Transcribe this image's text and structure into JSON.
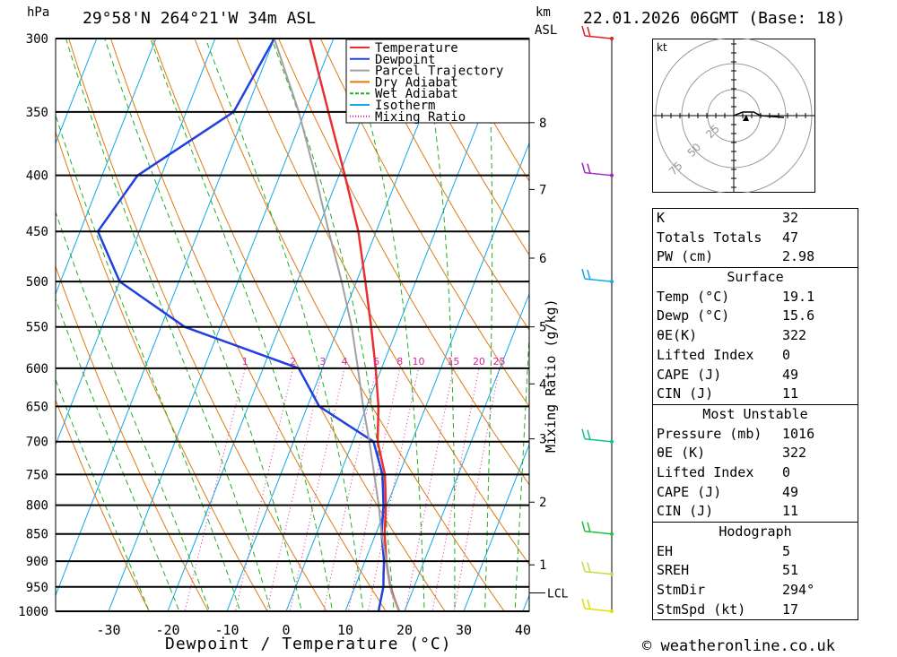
{
  "header": {
    "station": "29°58'N 264°21'W 34m ASL",
    "run": "22.01.2026 06GMT (Base: 18)",
    "pressure_unit": "hPa",
    "height_unit_km": "km",
    "height_unit_asl": "ASL"
  },
  "footer": {
    "xlabel": "Dewpoint / Temperature (°C)",
    "mixing_label": "Mixing Ratio (g/kg)",
    "credit": "© weatheronline.co.uk"
  },
  "legend": [
    {
      "label": "Temperature",
      "color": "#e83030"
    },
    {
      "label": "Dewpoint",
      "color": "#2040e0"
    },
    {
      "label": "Parcel Trajectory",
      "color": "#a0a0a0"
    },
    {
      "label": "Dry Adiabat",
      "color": "#e07a10"
    },
    {
      "label": "Wet Adiabat",
      "color": "#20b020"
    },
    {
      "label": "Isotherm",
      "color": "#10a8e8"
    },
    {
      "label": "Mixing Ratio",
      "color": "#e020a0"
    }
  ],
  "chart_data": {
    "type": "line",
    "title": "29°58'N 264°21'W 34m ASL",
    "xlabel": "Dewpoint / Temperature (°C)",
    "ylabel": "hPa",
    "y_scale": "log-pressure",
    "ylim": [
      1000,
      300
    ],
    "xlim": [
      -40,
      40
    ],
    "pressure_ticks": [
      1000,
      950,
      900,
      850,
      800,
      750,
      700,
      650,
      600,
      550,
      500,
      450,
      400,
      350,
      300
    ],
    "temp_ticks": [
      -30,
      -20,
      -10,
      0,
      10,
      20,
      30,
      40
    ],
    "km_ticks": [
      {
        "label": "1",
        "p": 907
      },
      {
        "label": "2",
        "p": 795
      },
      {
        "label": "3",
        "p": 696
      },
      {
        "label": "4",
        "p": 620
      },
      {
        "label": "5",
        "p": 550
      },
      {
        "label": "6",
        "p": 476
      },
      {
        "label": "7",
        "p": 412
      },
      {
        "label": "8",
        "p": 358
      }
    ],
    "lcl": {
      "label": "LCL",
      "p": 962
    },
    "mixing_ratio_labels": [
      "1",
      "2",
      "3",
      "4",
      "6",
      "8",
      "10",
      "15",
      "20",
      "25"
    ],
    "series": [
      {
        "name": "Temperature",
        "color": "#e83030",
        "points": [
          [
            1000,
            19.1
          ],
          [
            975,
            17.5
          ],
          [
            950,
            16.0
          ],
          [
            925,
            14.8
          ],
          [
            900,
            13.6
          ],
          [
            850,
            11.5
          ],
          [
            800,
            9.8
          ],
          [
            750,
            7.6
          ],
          [
            700,
            4.2
          ],
          [
            650,
            2.0
          ],
          [
            600,
            -1.0
          ],
          [
            550,
            -4.5
          ],
          [
            500,
            -8.5
          ],
          [
            450,
            -13
          ],
          [
            400,
            -19
          ],
          [
            350,
            -26
          ],
          [
            300,
            -34
          ]
        ]
      },
      {
        "name": "Dewpoint",
        "color": "#2040e0",
        "points": [
          [
            1000,
            15.6
          ],
          [
            975,
            15.2
          ],
          [
            950,
            14.8
          ],
          [
            925,
            14.0
          ],
          [
            900,
            13.2
          ],
          [
            850,
            11.0
          ],
          [
            800,
            9.4
          ],
          [
            750,
            7.2
          ],
          [
            700,
            3.5
          ],
          [
            650,
            -8
          ],
          [
            600,
            -14
          ],
          [
            550,
            -36
          ],
          [
            500,
            -50
          ],
          [
            450,
            -57
          ],
          [
            400,
            -54
          ],
          [
            350,
            -42
          ],
          [
            300,
            -40
          ]
        ]
      },
      {
        "name": "Parcel Trajectory",
        "color": "#a0a0a0",
        "points": [
          [
            1000,
            19.1
          ],
          [
            962,
            16.6
          ],
          [
            900,
            13.6
          ],
          [
            850,
            11.0
          ],
          [
            800,
            8.6
          ],
          [
            750,
            5.8
          ],
          [
            700,
            2.8
          ],
          [
            650,
            -0.6
          ],
          [
            600,
            -4
          ],
          [
            550,
            -7.8
          ],
          [
            500,
            -12.5
          ],
          [
            450,
            -18
          ],
          [
            400,
            -24
          ],
          [
            350,
            -31
          ],
          [
            300,
            -40
          ]
        ]
      }
    ],
    "wind_barbs": [
      {
        "p": 1000,
        "color": "#e0e000"
      },
      {
        "p": 925,
        "color": "#c0e040"
      },
      {
        "p": 850,
        "color": "#20c040"
      },
      {
        "p": 700,
        "color": "#10c090"
      },
      {
        "p": 500,
        "color": "#10a8e8"
      },
      {
        "p": 400,
        "color": "#a020c0"
      },
      {
        "p": 300,
        "color": "#e02020"
      }
    ]
  },
  "hodograph": {
    "unit": "kt",
    "rings": [
      "25",
      "50",
      "75"
    ]
  },
  "indices": {
    "top": [
      {
        "label": "K",
        "value": "32"
      },
      {
        "label": "Totals Totals",
        "value": "47"
      },
      {
        "label": "PW (cm)",
        "value": "2.98"
      }
    ],
    "surface": {
      "title": "Surface",
      "rows": [
        {
          "label": "Temp (°C)",
          "value": "19.1"
        },
        {
          "label": "Dewp (°C)",
          "value": "15.6"
        },
        {
          "label": "θE(K)",
          "value": "322"
        },
        {
          "label": "Lifted Index",
          "value": "0"
        },
        {
          "label": "CAPE (J)",
          "value": "49"
        },
        {
          "label": "CIN (J)",
          "value": "11"
        }
      ]
    },
    "unstable": {
      "title": "Most Unstable",
      "rows": [
        {
          "label": "Pressure (mb)",
          "value": "1016"
        },
        {
          "label": "θE (K)",
          "value": "322"
        },
        {
          "label": "Lifted Index",
          "value": "0"
        },
        {
          "label": "CAPE (J)",
          "value": "49"
        },
        {
          "label": "CIN (J)",
          "value": "11"
        }
      ]
    },
    "hodograph": {
      "title": "Hodograph",
      "rows": [
        {
          "label": "EH",
          "value": "5"
        },
        {
          "label": "SREH",
          "value": "51"
        },
        {
          "label": "StmDir",
          "value": "294°"
        },
        {
          "label": "StmSpd (kt)",
          "value": "17"
        }
      ]
    }
  }
}
